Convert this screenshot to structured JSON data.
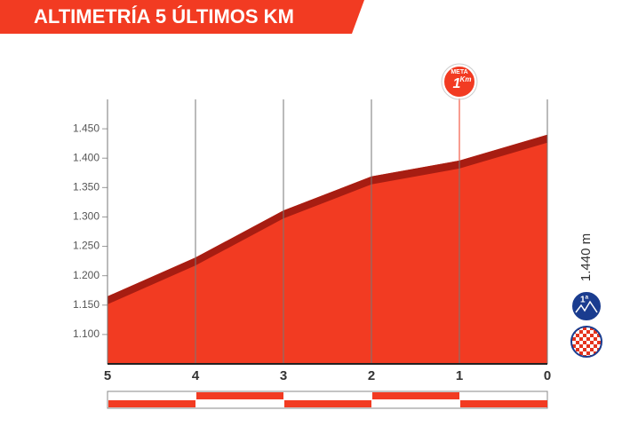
{
  "chart_data": {
    "type": "area",
    "title": "ALTIMETRÍA 5 ÚLTIMOS KM",
    "x": [
      5,
      4,
      3,
      2,
      1,
      0
    ],
    "values": [
      1165,
      1231,
      1311,
      1369,
      1396,
      1440
    ],
    "color": "#f23b22",
    "edge_color": "#a71d12",
    "xlim": [
      5,
      0
    ],
    "xticks": [
      5,
      4,
      3,
      2,
      1,
      0
    ],
    "highlight_xtick": 1,
    "ylim": [
      1050,
      1500
    ],
    "yticks": [
      {
        "value": 1100,
        "label": "1.100"
      },
      {
        "value": 1150,
        "label": "1.150"
      },
      {
        "value": 1200,
        "label": "1.200"
      },
      {
        "value": 1250,
        "label": "1.250"
      },
      {
        "value": 1300,
        "label": "1.300"
      },
      {
        "value": 1350,
        "label": "1.350"
      },
      {
        "value": 1400,
        "label": "1.400"
      },
      {
        "value": 1450,
        "label": "1.450"
      }
    ],
    "finish_marker": {
      "x": 1,
      "top": "META",
      "number": "1",
      "unit": "Km"
    },
    "summit_label": "1.440 m",
    "climb_badge": "1ª"
  }
}
